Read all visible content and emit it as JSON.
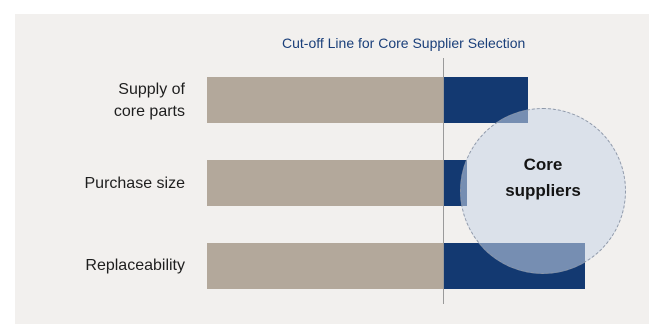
{
  "cutoff_title": "Cut-off Line for Core Supplier Selection",
  "rows": [
    {
      "label_lines": [
        "Supply of",
        "core parts"
      ],
      "above_cutoff": 0.36
    },
    {
      "label_lines": [
        "Purchase size"
      ],
      "above_cutoff": 0.1
    },
    {
      "label_lines": [
        "Replaceability"
      ],
      "above_cutoff": 0.6
    }
  ],
  "bubble": {
    "line1": "Core",
    "line2": "suppliers"
  },
  "colors": {
    "base_bar": "#b3a89b",
    "core_bar": "#133971",
    "cutoff_title": "#1a3f7a",
    "panel": "#f2f0ee"
  }
}
